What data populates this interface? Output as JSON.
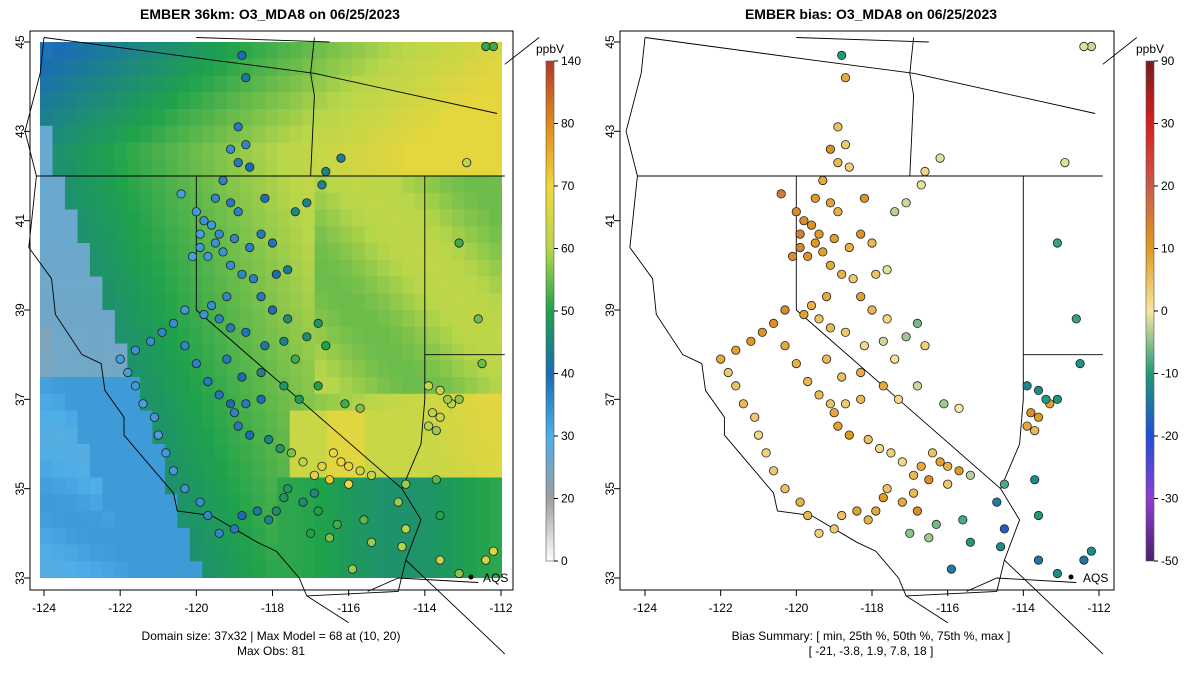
{
  "chart_data": [
    {
      "type": "heatmap",
      "title": "EMBER 36km: O3_MDA8 on 06/25/2023",
      "x_ticks": [
        "-124",
        "-122",
        "-120",
        "-118",
        "-116",
        "-114",
        "-112"
      ],
      "y_ticks": [
        "33",
        "35",
        "37",
        "39",
        "41",
        "43",
        "45"
      ],
      "xlim": [
        -124.3,
        -111.9
      ],
      "ylim": [
        32.9,
        45.1
      ],
      "colorbar": {
        "unit": "ppbV",
        "tick_labels": [
          "0",
          "20",
          "30",
          "40",
          "50",
          "60",
          "70",
          "80",
          "140"
        ],
        "tick_values": [
          0,
          20,
          30,
          40,
          50,
          60,
          70,
          80,
          140
        ],
        "colors": [
          "#ffffff",
          "#9e9e9e",
          "#4eaee8",
          "#1b6db3",
          "#1fa24c",
          "#b8d64a",
          "#f2d63a",
          "#e0891c",
          "#b23a2a"
        ]
      },
      "caption_line1": "Domain size: 37x32 | Max Model = 68 at (10, 20)",
      "caption_line2": "Max Obs: 81",
      "network_label": "AQS"
    },
    {
      "type": "scatter",
      "title": "EMBER bias: O3_MDA8 on 06/25/2023",
      "x_ticks": [
        "-124",
        "-122",
        "-120",
        "-118",
        "-116",
        "-114",
        "-112"
      ],
      "y_ticks": [
        "33",
        "35",
        "37",
        "39",
        "41",
        "43",
        "45"
      ],
      "xlim": [
        -124.3,
        -111.9
      ],
      "ylim": [
        32.9,
        45.1
      ],
      "colorbar": {
        "unit": "ppbV",
        "tick_labels": [
          "90",
          "30",
          "20",
          "10",
          "0",
          "-10",
          "-20",
          "-30",
          "-50"
        ],
        "tick_values": [
          90,
          30,
          20,
          10,
          0,
          -10,
          -20,
          -30,
          -50
        ],
        "colors": [
          "#7a1c1c",
          "#d62020",
          "#c95a4a",
          "#e09a20",
          "#f7e8a0",
          "#1e9a78",
          "#1f4fd6",
          "#8e3fd1",
          "#4b1f6f"
        ]
      },
      "caption_line1": "Bias Summary: [ min, 25th %, 50th %, 75th %, max ]",
      "caption_line2": "[ -21,   -3.8,   1.9,   7.8,   18 ]",
      "network_label": "AQS",
      "bias_summary": {
        "min": -21,
        "p25": -3.8,
        "p50": 1.9,
        "p75": 7.8,
        "max": 18
      }
    }
  ]
}
